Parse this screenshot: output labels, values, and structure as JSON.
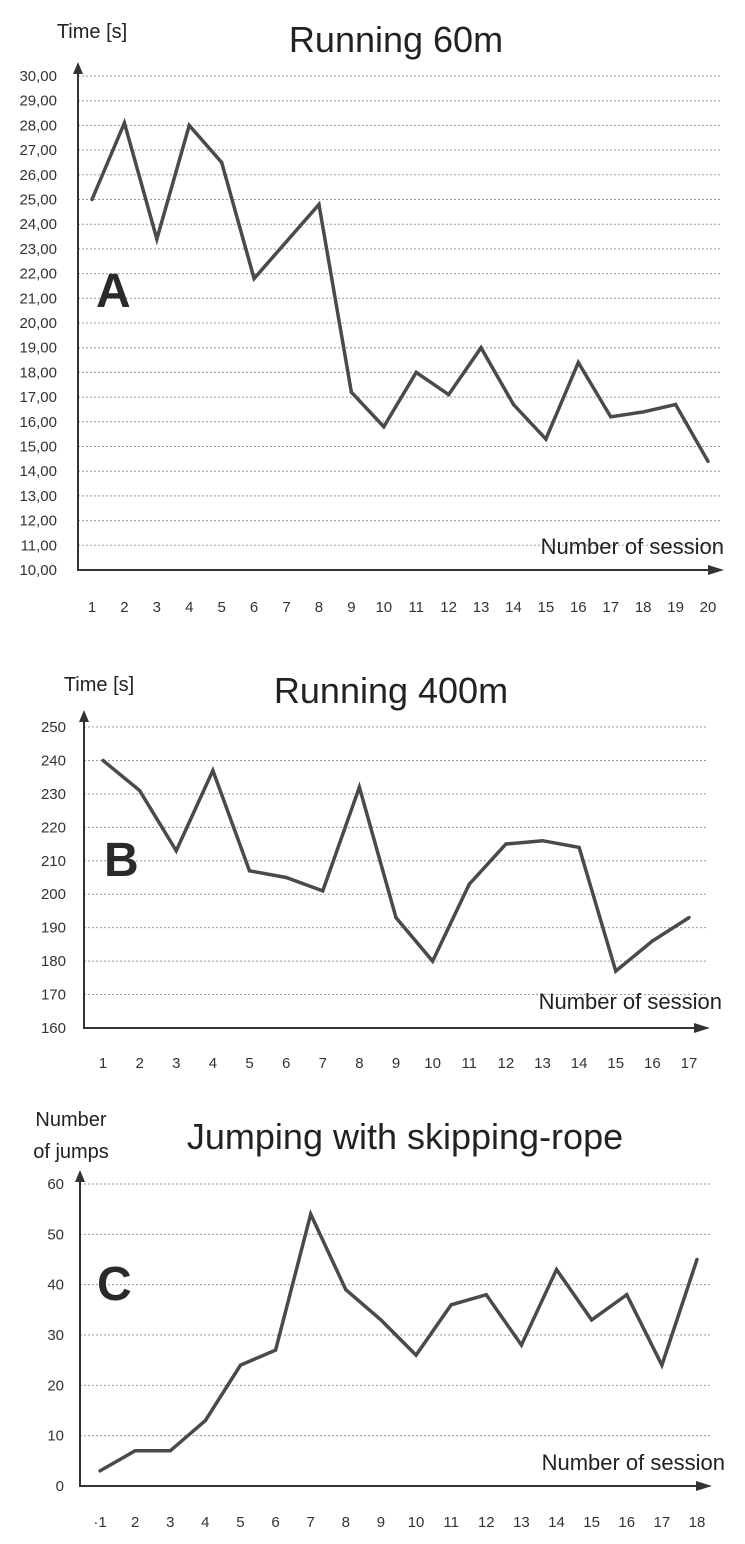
{
  "chart_data": [
    {
      "type": "line",
      "panel_letter": "A",
      "title": "Running 60m",
      "ylabel": "Time [s]",
      "xlabel": "Number of session",
      "x": [
        "1",
        "2",
        "3",
        "4",
        "5",
        "6",
        "7",
        "8",
        "9",
        "10",
        "11",
        "12",
        "13",
        "14",
        "15",
        "16",
        "17",
        "18",
        "19",
        "20"
      ],
      "series": [
        {
          "values": [
            25.0,
            28.1,
            23.4,
            28.0,
            26.5,
            21.8,
            23.3,
            24.8,
            17.2,
            15.8,
            18.0,
            17.1,
            19.0,
            16.7,
            15.3,
            18.4,
            16.2,
            16.4,
            16.7,
            14.4
          ]
        }
      ],
      "yticks": [
        "10,00",
        "11,00",
        "12,00",
        "13,00",
        "14,00",
        "15,00",
        "16,00",
        "17,00",
        "18,00",
        "19,00",
        "20,00",
        "21,00",
        "22,00",
        "23,00",
        "24,00",
        "25,00",
        "26,00",
        "27,00",
        "28,00",
        "29,00",
        "30,00"
      ],
      "ylim": [
        10,
        30
      ],
      "grid": true
    },
    {
      "type": "line",
      "panel_letter": "B",
      "title": "Running 400m",
      "ylabel": "Time [s]",
      "xlabel": "Number of session",
      "x": [
        "1",
        "2",
        "3",
        "4",
        "5",
        "6",
        "7",
        "8",
        "9",
        "10",
        "11",
        "12",
        "13",
        "14",
        "15",
        "16",
        "17"
      ],
      "series": [
        {
          "values": [
            240,
            231,
            213,
            237,
            207,
            205,
            201,
            232,
            193,
            180,
            203,
            215,
            216,
            214,
            177,
            186,
            193
          ]
        }
      ],
      "yticks": [
        "160",
        "170",
        "180",
        "190",
        "200",
        "210",
        "220",
        "230",
        "240",
        "250"
      ],
      "ylim": [
        160,
        250
      ],
      "grid": true
    },
    {
      "type": "line",
      "panel_letter": "C",
      "title": "Jumping with skipping-rope",
      "ylabel_lines": [
        "Number",
        "of jumps"
      ],
      "xlabel": "Number of session",
      "x": [
        "·1",
        "2",
        "3",
        "4",
        "5",
        "6",
        "7",
        "8",
        "9",
        "10",
        "11",
        "12",
        "13",
        "14",
        "15",
        "16",
        "17",
        "18"
      ],
      "series": [
        {
          "values": [
            3,
            7,
            7,
            13,
            24,
            27,
            54,
            39,
            33,
            26,
            36,
            38,
            28,
            43,
            33,
            38,
            24,
            45
          ]
        }
      ],
      "yticks": [
        "0",
        "10",
        "20",
        "30",
        "40",
        "50",
        "60"
      ],
      "ylim": [
        0,
        60
      ],
      "grid": true
    }
  ]
}
